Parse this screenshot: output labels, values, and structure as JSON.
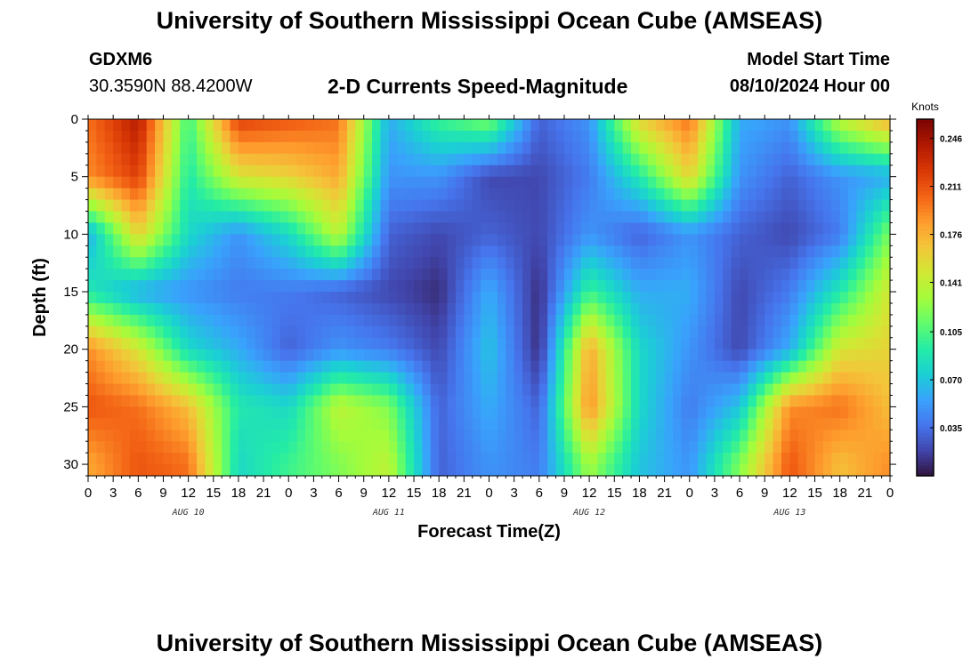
{
  "header": {
    "title": "University of Southern Mississippi Ocean Cube (AMSEAS)",
    "station_id": "GDXM6",
    "station_coords": "30.3590N  88.4200W",
    "product": "2-D Currents Speed-Magnitude",
    "start_label": "Model Start Time",
    "start_value": "08/10/2024 Hour 00"
  },
  "footer": {
    "title": "University of Southern Mississippi Ocean Cube (AMSEAS)"
  },
  "chart_data": {
    "type": "heatmap",
    "xlabel": "Forecast Time(Z)",
    "ylabel": "Depth (ft)",
    "x_tick_labels": [
      "0",
      "3",
      "6",
      "9",
      "12",
      "15",
      "18",
      "21",
      "0",
      "3",
      "6",
      "9",
      "12",
      "15",
      "18",
      "21",
      "0",
      "3",
      "6",
      "9",
      "12",
      "15",
      "18",
      "21",
      "0",
      "3",
      "6",
      "9",
      "12",
      "15",
      "18",
      "21",
      "0"
    ],
    "x_range_hours": [
      0,
      96
    ],
    "date_labels": [
      {
        "label": "AUG 10",
        "hour": 12
      },
      {
        "label": "AUG 11",
        "hour": 36
      },
      {
        "label": "AUG 12",
        "hour": 60
      },
      {
        "label": "AUG 13",
        "hour": 84
      }
    ],
    "y_ticks": [
      0,
      5,
      10,
      15,
      20,
      25,
      30
    ],
    "y_range_ft": [
      0,
      31
    ],
    "y_inverted": true,
    "colorbar": {
      "unit": "Knots",
      "ticks": [
        "0.246",
        "0.211",
        "0.176",
        "0.141",
        "0.105",
        "0.070",
        "0.035"
      ],
      "tick_values": [
        0.246,
        0.211,
        0.176,
        0.141,
        0.105,
        0.07,
        0.035
      ],
      "range": [
        0.0,
        0.26
      ],
      "colormap": [
        "#30123b",
        "#4145ab",
        "#4675ed",
        "#39a2fc",
        "#1bcfd4",
        "#24eca6",
        "#61fc6c",
        "#a4fc3b",
        "#d1e834",
        "#f3c63a",
        "#fe9b2d",
        "#f36315",
        "#d93806",
        "#b11901",
        "#7a0402"
      ]
    },
    "speed_knots": {
      "depth_ft": [
        0,
        5,
        10,
        15,
        20,
        25,
        30
      ],
      "hours": [
        0,
        6,
        12,
        18,
        24,
        30,
        36,
        42,
        48,
        54,
        60,
        66,
        72,
        78,
        84,
        90,
        96
      ],
      "values": [
        [
          0.2,
          0.24,
          0.1,
          0.22,
          0.21,
          0.2,
          0.06,
          0.1,
          0.12,
          0.03,
          0.05,
          0.16,
          0.2,
          0.06,
          0.05,
          0.14,
          0.18
        ],
        [
          0.19,
          0.22,
          0.09,
          0.15,
          0.16,
          0.18,
          0.05,
          0.05,
          0.02,
          0.02,
          0.04,
          0.09,
          0.16,
          0.05,
          0.03,
          0.05,
          0.06
        ],
        [
          0.06,
          0.16,
          0.08,
          0.05,
          0.08,
          0.14,
          0.03,
          0.02,
          0.03,
          0.02,
          0.05,
          0.03,
          0.05,
          0.03,
          0.02,
          0.04,
          0.12
        ],
        [
          0.09,
          0.06,
          0.05,
          0.04,
          0.04,
          0.03,
          0.02,
          0.01,
          0.06,
          0.01,
          0.1,
          0.06,
          0.06,
          0.02,
          0.04,
          0.09,
          0.15
        ],
        [
          0.19,
          0.15,
          0.08,
          0.06,
          0.03,
          0.05,
          0.04,
          0.02,
          0.07,
          0.01,
          0.18,
          0.08,
          0.05,
          0.02,
          0.06,
          0.15,
          0.16
        ],
        [
          0.21,
          0.2,
          0.17,
          0.09,
          0.08,
          0.14,
          0.12,
          0.03,
          0.06,
          0.03,
          0.19,
          0.08,
          0.04,
          0.07,
          0.19,
          0.2,
          0.17
        ],
        [
          0.18,
          0.21,
          0.2,
          0.08,
          0.1,
          0.12,
          0.14,
          0.03,
          0.05,
          0.04,
          0.13,
          0.07,
          0.05,
          0.12,
          0.21,
          0.17,
          0.19
        ]
      ]
    }
  }
}
